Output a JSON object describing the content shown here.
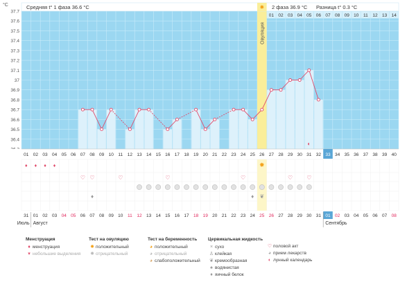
{
  "units": {
    "temp": "°C"
  },
  "header": {
    "phase1": "Средняя t° 1 фаза 36.6 °C",
    "phase2": "2 фаза 36.9 °C",
    "diff": "Разница t° 0.3 °C",
    "ovulation": "Овуляция"
  },
  "chart_data": {
    "type": "line",
    "ylim": [
      36.3,
      37.7
    ],
    "yticks": [
      "36.3",
      "36.4",
      "36.5",
      "36.6",
      "36.7",
      "36.8",
      "36.9",
      "37",
      "37.1",
      "37.2",
      "37.3",
      "37.4",
      "37.5",
      "37.6",
      "37.7"
    ],
    "days": [
      "01",
      "02",
      "03",
      "04",
      "05",
      "06",
      "07",
      "08",
      "09",
      "10",
      "11",
      "12",
      "13",
      "14",
      "15",
      "16",
      "17",
      "18",
      "19",
      "20",
      "21",
      "22",
      "23",
      "24",
      "25",
      "26",
      "27",
      "28",
      "29",
      "30",
      "31",
      "32",
      "33",
      "34",
      "35",
      "36",
      "37",
      "38",
      "39",
      "40"
    ],
    "phase2_days": [
      "01",
      "02",
      "03",
      "04",
      "05",
      "06",
      "07",
      "08",
      "09",
      "10",
      "11",
      "12",
      "13",
      "14"
    ],
    "temps": [
      null,
      null,
      null,
      null,
      null,
      null,
      36.7,
      36.7,
      36.5,
      36.7,
      null,
      36.5,
      36.7,
      36.7,
      null,
      36.5,
      36.6,
      null,
      36.7,
      36.5,
      36.6,
      null,
      36.7,
      36.7,
      36.6,
      36.7,
      36.9,
      36.9,
      37.0,
      37.0,
      37.1,
      36.8,
      null,
      null,
      null,
      null,
      null,
      null,
      null,
      null
    ],
    "ovulation_day": 26,
    "current_day": 33,
    "moon_day": 31
  },
  "rows": {
    "menstruation_days": [
      1,
      2,
      3,
      4
    ],
    "ovulation_test_days": [
      26
    ],
    "intercourse_days": [
      7,
      8,
      11,
      16,
      24,
      29,
      31
    ],
    "medication_days": [
      13,
      14,
      15,
      16,
      17,
      18,
      19,
      20,
      21,
      22,
      23,
      24,
      25,
      26,
      27,
      28,
      29,
      30,
      31
    ],
    "cervical_days": [
      8,
      25,
      26
    ]
  },
  "dates": {
    "labels": [
      "31",
      "01",
      "02",
      "03",
      "04",
      "05",
      "06",
      "07",
      "08",
      "09",
      "10",
      "11",
      "12",
      "13",
      "14",
      "15",
      "16",
      "17",
      "18",
      "19",
      "20",
      "21",
      "22",
      "23",
      "24",
      "25",
      "26",
      "27",
      "28",
      "29",
      "30",
      "31",
      "01",
      "02",
      "03",
      "04",
      "05",
      "06",
      "07",
      "08"
    ],
    "weekend_idx": [
      4,
      5,
      11,
      12,
      18,
      19,
      25,
      26,
      32,
      33,
      39
    ],
    "month_left": "Июль",
    "month_mid": "Август",
    "month_right": "Сентябрь"
  },
  "legend": {
    "menstruation": {
      "title": "Менструация",
      "items": [
        "менструация",
        "небольшие выделения"
      ]
    },
    "ovulation_test": {
      "title": "Тест на овуляцию",
      "items": [
        "положительный",
        "отрицательный"
      ]
    },
    "pregnancy_test": {
      "title": "Тест на беременность",
      "items": [
        "положительный",
        "отрицательный",
        "слабоположительный"
      ]
    },
    "cervical": {
      "title": "Цервикальная жидкость",
      "items": [
        "сухо",
        "клейкая",
        "кремообразная",
        "водянистая",
        "яичный белок"
      ]
    },
    "other": {
      "items": [
        "половой акт",
        "прием лекарств",
        "лунный календарь"
      ]
    }
  },
  "colors": {
    "background": "#9bd7f1",
    "bar": "#ddf1fb",
    "line": "#e04a6a",
    "ovulation": "#faee9a",
    "today": "#5aa6d6",
    "weekend": "#e0245a"
  }
}
